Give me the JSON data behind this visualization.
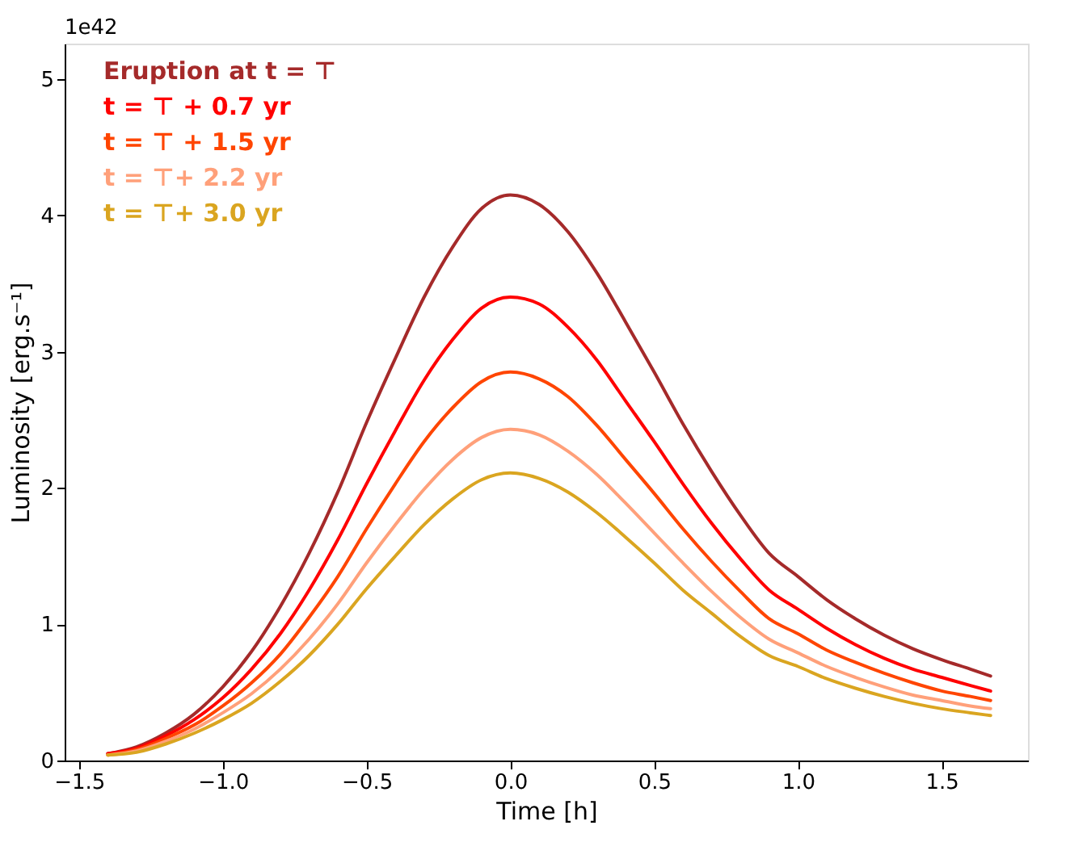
{
  "chart_data": {
    "type": "line",
    "xlabel": "Time [h]",
    "ylabel": "Luminosity [erg.s⁻¹]",
    "annotations": [
      "1e42"
    ],
    "x": [
      -1.4,
      -1.3,
      -1.2,
      -1.1,
      -1.0,
      -0.9,
      -0.8,
      -0.7,
      -0.6,
      -0.5,
      -0.4,
      -0.3,
      -0.2,
      -0.1,
      0,
      0.1,
      0.2,
      0.3,
      0.4,
      0.5,
      0.6,
      0.7,
      0.8,
      0.9,
      1.0,
      1.1,
      1.2,
      1.3,
      1.4,
      1.5,
      1.6,
      1.67
    ],
    "series": [
      {
        "name": "Eruption at t = ⊤",
        "color": "#a52a2a",
        "values": [
          0.05,
          0.1,
          0.2,
          0.34,
          0.54,
          0.8,
          1.13,
          1.52,
          1.97,
          2.48,
          2.95,
          3.4,
          3.77,
          4.05,
          4.15,
          4.08,
          3.88,
          3.58,
          3.22,
          2.85,
          2.47,
          2.12,
          1.8,
          1.52,
          1.35,
          1.18,
          1.04,
          0.92,
          0.82,
          0.74,
          0.67,
          0.62
        ]
      },
      {
        "name": "t = ⊤ + 0.7 yr",
        "color": "#ff0000",
        "values": [
          0.05,
          0.09,
          0.18,
          0.3,
          0.46,
          0.67,
          0.93,
          1.25,
          1.62,
          2.03,
          2.42,
          2.79,
          3.09,
          3.32,
          3.4,
          3.35,
          3.18,
          2.94,
          2.64,
          2.34,
          2.03,
          1.74,
          1.48,
          1.25,
          1.11,
          0.97,
          0.85,
          0.75,
          0.67,
          0.61,
          0.55,
          0.51
        ]
      },
      {
        "name": "t = ⊤ + 1.5 yr",
        "color": "#ff4500",
        "values": [
          0.04,
          0.08,
          0.16,
          0.26,
          0.4,
          0.57,
          0.78,
          1.05,
          1.35,
          1.7,
          2.03,
          2.34,
          2.59,
          2.78,
          2.85,
          2.8,
          2.67,
          2.46,
          2.21,
          1.96,
          1.7,
          1.46,
          1.24,
          1.04,
          0.93,
          0.81,
          0.72,
          0.64,
          0.57,
          0.51,
          0.47,
          0.44
        ]
      },
      {
        "name": "t = ⊤+ 2.2 yr",
        "color": "#ffa07a",
        "values": [
          0.04,
          0.07,
          0.14,
          0.23,
          0.35,
          0.49,
          0.67,
          0.89,
          1.15,
          1.45,
          1.73,
          1.99,
          2.21,
          2.37,
          2.43,
          2.39,
          2.27,
          2.1,
          1.89,
          1.67,
          1.45,
          1.24,
          1.05,
          0.89,
          0.79,
          0.69,
          0.61,
          0.54,
          0.48,
          0.44,
          0.4,
          0.38
        ]
      },
      {
        "name": "t =  ⊤+ 3.0 yr",
        "color": "#daa520",
        "values": [
          0.04,
          0.06,
          0.12,
          0.2,
          0.3,
          0.42,
          0.58,
          0.77,
          1.0,
          1.26,
          1.5,
          1.73,
          1.92,
          2.06,
          2.11,
          2.07,
          1.97,
          1.82,
          1.64,
          1.45,
          1.25,
          1.08,
          0.91,
          0.77,
          0.69,
          0.6,
          0.53,
          0.47,
          0.42,
          0.38,
          0.35,
          0.33
        ]
      }
    ],
    "xlim": [
      -1.55,
      1.8
    ],
    "xticks": [
      {
        "value": -1.5,
        "label": "−1.5"
      },
      {
        "value": -1.0,
        "label": "−1.0"
      },
      {
        "value": -0.5,
        "label": "−0.5"
      },
      {
        "value": 0,
        "label": "0.0"
      },
      {
        "value": 0.5,
        "label": "0.5"
      },
      {
        "value": 1.0,
        "label": "1.0"
      },
      {
        "value": 1.5,
        "label": "1.5"
      }
    ],
    "ylim": [
      0,
      5.26
    ],
    "yticks": [
      0,
      1,
      2,
      3,
      4,
      5
    ],
    "grid": false,
    "legend": "top left",
    "marker": "none",
    "line_style": "solid"
  }
}
